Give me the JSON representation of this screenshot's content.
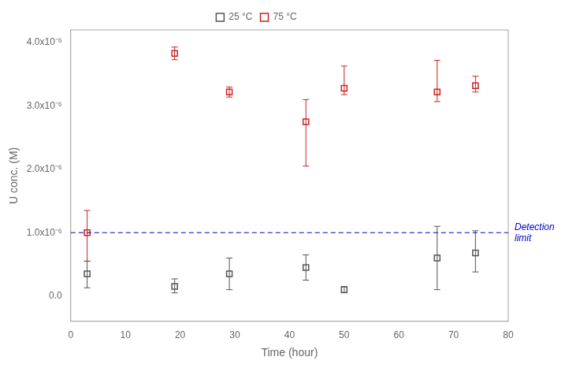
{
  "chart_data": {
    "type": "scatter",
    "xlabel": "Time (hour)",
    "ylabel": "U conc. (M)",
    "series": [
      {
        "name": "25 °C",
        "color": "#555555",
        "marker": "square",
        "x": [
          3,
          19,
          29,
          43,
          50,
          67,
          74
        ],
        "values": [
          3.5e-07,
          1.5e-07,
          3.5e-07,
          4.5e-07,
          1e-07,
          6e-07,
          6.8e-07
        ],
        "yerr_low": [
          2.2e-07,
          1e-07,
          2.5e-07,
          2e-07,
          5e-08,
          5e-07,
          3e-07
        ],
        "yerr_high": [
          2e-07,
          1.2e-07,
          2.5e-07,
          2e-07,
          5e-08,
          5e-07,
          3.5e-07
        ]
      },
      {
        "name": "75 °C",
        "color": "#cc2222",
        "marker": "square",
        "x": [
          3,
          19,
          29,
          43,
          50,
          67,
          74
        ],
        "values": [
          1e-06,
          3.83e-06,
          3.22e-06,
          2.75e-06,
          3.28e-06,
          3.22e-06,
          3.32e-06
        ],
        "yerr_low": [
          4.5e-07,
          1e-07,
          8e-08,
          7e-07,
          1e-07,
          1.5e-07,
          1e-07
        ],
        "yerr_high": [
          3.5e-07,
          1e-07,
          8e-08,
          3.5e-07,
          3.5e-07,
          5e-07,
          1.5e-07
        ]
      }
    ],
    "annotations": [
      {
        "type": "hline",
        "y": 1e-06,
        "label": "Detection\nlimit",
        "color": "#0000cc",
        "line_style": "dashed"
      }
    ],
    "xlim": [
      0,
      80
    ],
    "xticks": [
      0,
      10,
      20,
      30,
      40,
      50,
      60,
      70,
      80
    ],
    "ylim": [
      -4e-07,
      4.2e-06
    ],
    "yticks": [
      {
        "value": 0.0,
        "label": "0.0"
      },
      {
        "value": 1e-06,
        "label": "1.0x10⁻⁶"
      },
      {
        "value": 2e-06,
        "label": "2.0x10⁻⁶"
      },
      {
        "value": 3e-06,
        "label": "3.0x10⁻⁶"
      },
      {
        "value": 4e-06,
        "label": "4.0x10⁻⁶"
      }
    ],
    "grid": false,
    "legend": "top"
  }
}
